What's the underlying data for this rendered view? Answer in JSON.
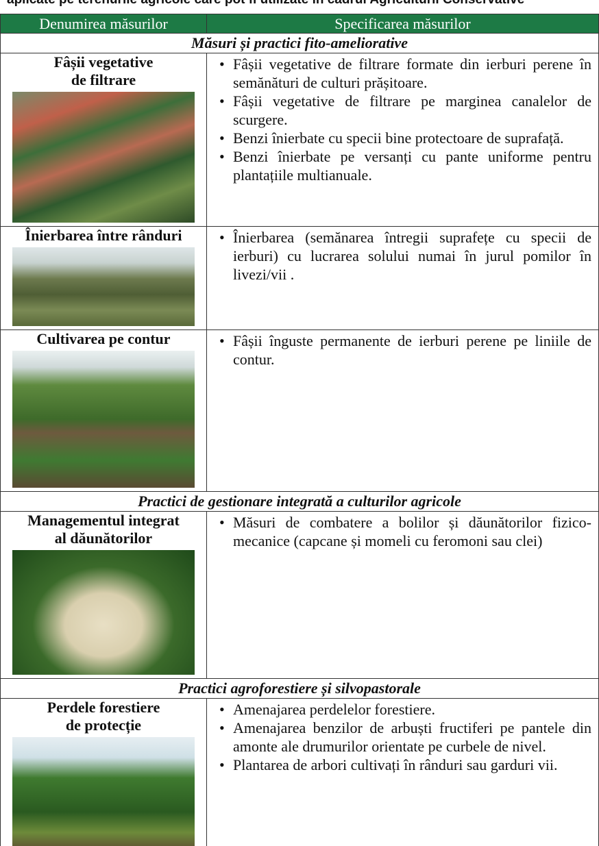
{
  "caption": "aplicate pe terenurile agricole care pot fi utilizate în cadrul Agriculturii Conservative",
  "table": {
    "headers": [
      "Denumirea măsurilor",
      "Specificarea măsurilor"
    ],
    "sections": [
      {
        "title": "Măsuri și practici fito-ameliorative",
        "rows": [
          {
            "title": [
              "Fâșii vegetative",
              "de filtrare"
            ],
            "items": [
              "Fâșii vegetative de filtrare formate din ierburi perene în semănături de culturi prășitoare.",
              "Fâșii vegetative de filtrare pe marginea canalelor de scurgere.",
              "Benzi înierbate cu specii bine protectoare de suprafață.",
              "Benzi înierbate pe versanți cu pante uniforme pentru plantațiile multianuale."
            ]
          },
          {
            "title": [
              "Înierbarea între rânduri"
            ],
            "items": [
              "Înierbarea (semănarea întregii suprafețe cu specii de ierburi) cu lucrarea solului numai în jurul pomilor în livezi/vii ."
            ]
          },
          {
            "title": [
              "Cultivarea pe contur"
            ],
            "items": [
              "Fâșii înguste permanente de ierburi perene pe liniile de contur."
            ]
          }
        ]
      },
      {
        "title": "Practici de gestionare integrată a culturilor agricole",
        "rows": [
          {
            "title": [
              "Managementul integrat",
              "al dăunătorilor"
            ],
            "items": [
              "Măsuri de combatere a bolilor și dăunătorilor fizico-mecanice (capcane și momeli cu feromoni sau clei)"
            ]
          }
        ]
      },
      {
        "title": "Practici agroforestiere și silvopastorale",
        "rows": [
          {
            "title": [
              "Perdele forestiere",
              "de protecție"
            ],
            "items": [
              "Amenajarea perdelelor forestiere.",
              "Amenajarea benzilor de arbuști fructiferi pe pantele din amonte ale drumurilor orientate pe curbele de nivel.",
              "Plantarea de arbori cultivați în rânduri sau garduri vii."
            ]
          }
        ]
      }
    ]
  }
}
